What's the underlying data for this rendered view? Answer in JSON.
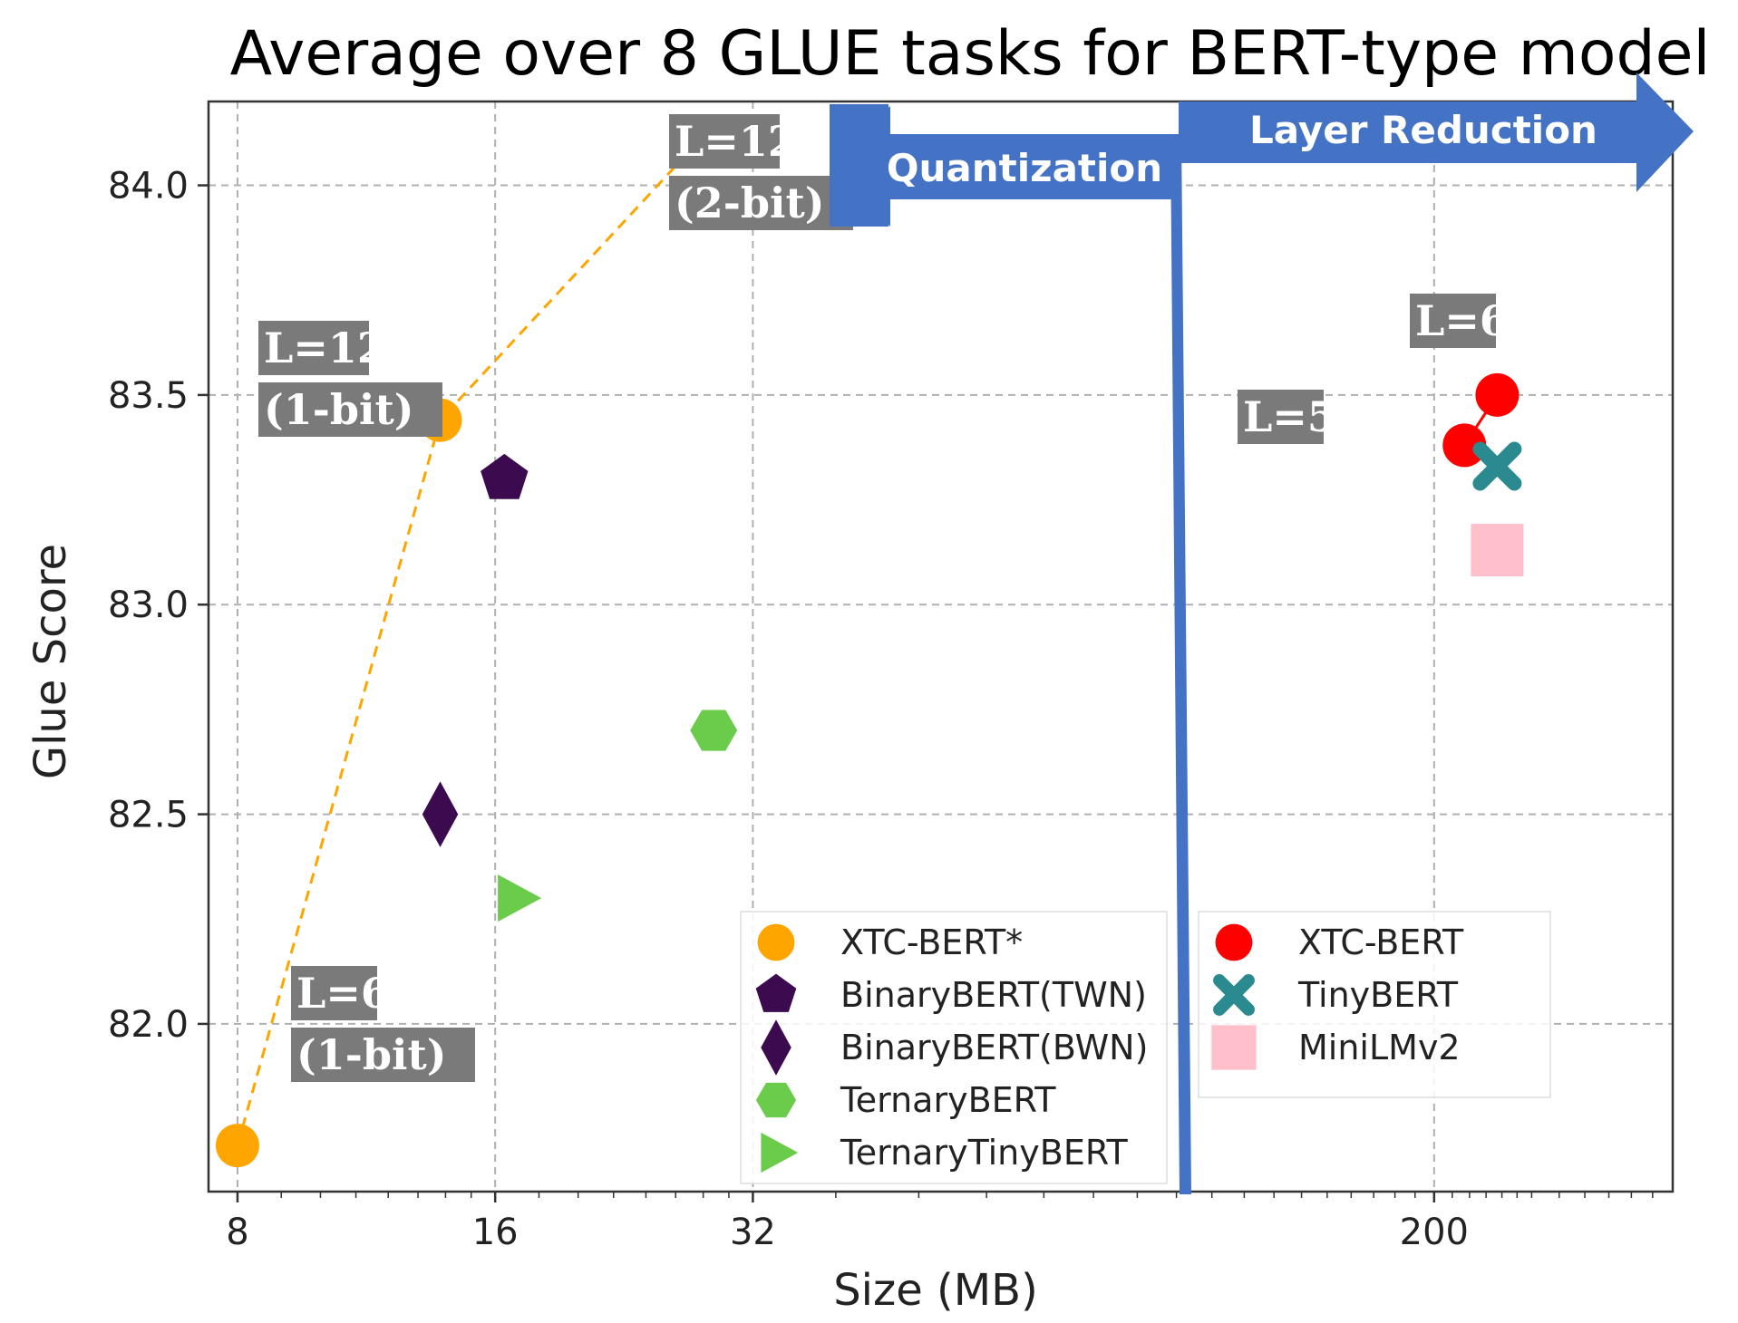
{
  "chart_data": {
    "type": "scatter",
    "title": "Average over 8 GLUE tasks for BERT-type model",
    "xlabel": "Size (MB)",
    "ylabel": "Glue Score",
    "x_scale": "log2",
    "xlim": [
      7.4,
      380
    ],
    "ylim": [
      81.6,
      84.2
    ],
    "x_ticks": [
      8,
      16,
      32,
      200
    ],
    "x_tick_labels": [
      "8",
      "16",
      "32",
      "200"
    ],
    "y_ticks": [
      82.0,
      82.5,
      83.0,
      83.5,
      84.0
    ],
    "y_tick_labels": [
      "82.0",
      "82.5",
      "83.0",
      "83.5",
      "84.0"
    ],
    "grid": true,
    "series": [
      {
        "name": "XTC-BERT*",
        "marker": "circle",
        "color": "#ffa500",
        "line": "dashed",
        "points": [
          [
            8,
            81.71
          ],
          [
            13.8,
            83.44
          ],
          [
            27.5,
            84.1
          ]
        ]
      },
      {
        "name": "BinaryBERT(TWN)",
        "marker": "pentagon",
        "color": "#3b0a4f",
        "points": [
          [
            16.4,
            83.3
          ]
        ]
      },
      {
        "name": "BinaryBERT(BWN)",
        "marker": "diamond",
        "color": "#3b0a4f",
        "points": [
          [
            13.8,
            82.5
          ]
        ]
      },
      {
        "name": "TernaryBERT",
        "marker": "hexagon",
        "color": "#6acc4a",
        "points": [
          [
            28.8,
            82.7
          ]
        ]
      },
      {
        "name": "TernaryTinyBERT",
        "marker": "triangle-right",
        "color": "#6acc4a",
        "points": [
          [
            16.9,
            82.3
          ]
        ]
      },
      {
        "name": "XTC-BERT",
        "marker": "circle",
        "color": "#ff0000",
        "line": "solid",
        "points": [
          [
            217,
            83.38
          ],
          [
            237,
            83.5
          ]
        ]
      },
      {
        "name": "TinyBERT",
        "marker": "x",
        "color": "#2a8a8f",
        "points": [
          [
            237,
            83.33
          ]
        ]
      },
      {
        "name": "MiniLMv2",
        "marker": "square",
        "color": "#ffc0cb",
        "points": [
          [
            237,
            83.13
          ]
        ]
      }
    ],
    "annotations": [
      {
        "lines": [
          "L=12",
          "(2-bit)"
        ],
        "x": 27.5,
        "y": 84.1
      },
      {
        "lines": [
          "L=12",
          "(1-bit)"
        ],
        "x": 13.8,
        "y": 83.44
      },
      {
        "lines": [
          "L=6",
          "(1-bit)"
        ],
        "x": 8,
        "y": 81.71
      },
      {
        "lines": [
          "L=6"
        ],
        "x": 237,
        "y": 83.5
      },
      {
        "lines": [
          "L=5"
        ],
        "x": 217,
        "y": 83.38
      }
    ],
    "arrows": [
      {
        "label": "Quantization",
        "direction": "left",
        "color": "#4472c4"
      },
      {
        "label": "Layer Reduction",
        "direction": "right",
        "color": "#4472c4"
      }
    ],
    "divider_color": "#4472c4",
    "legends": [
      {
        "position": "lower-center",
        "entries": [
          "XTC-BERT*",
          "BinaryBERT(TWN)",
          "BinaryBERT(BWN)",
          "TernaryBERT",
          "TernaryTinyBERT"
        ]
      },
      {
        "position": "lower-right",
        "entries": [
          "XTC-BERT",
          "TinyBERT",
          "MiniLMv2"
        ]
      }
    ]
  }
}
